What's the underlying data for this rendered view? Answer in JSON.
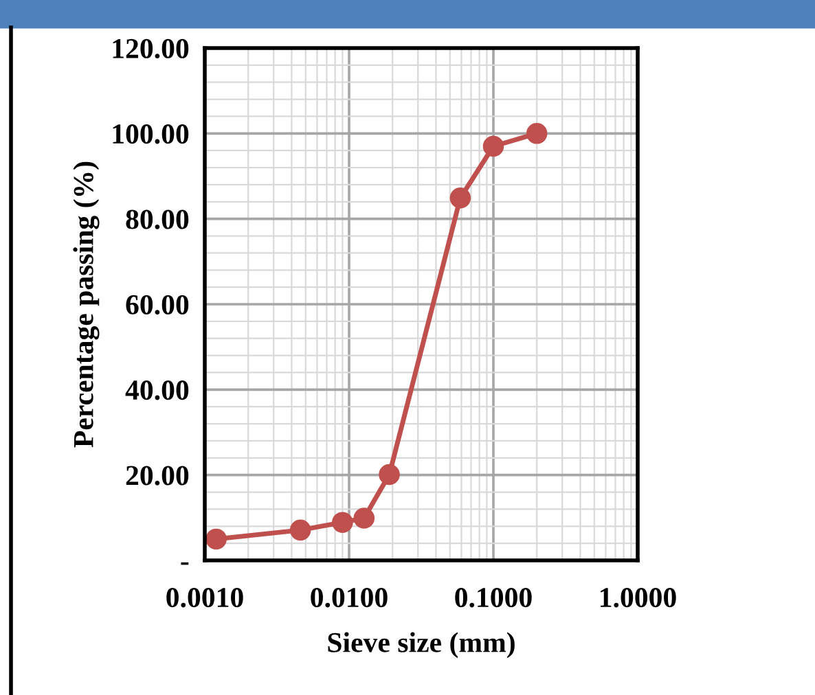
{
  "chart_data": {
    "type": "line",
    "xlabel": "Sieve size (mm)",
    "ylabel": "Percentage passing (%)",
    "x": [
      0.0012,
      0.0046,
      0.009,
      0.0127,
      0.019,
      0.059,
      0.1,
      0.2
    ],
    "series": [
      {
        "color": "#c0504d",
        "values": [
          5.0,
          7.1,
          8.9,
          9.9,
          20.1,
          84.9,
          97.0,
          100.0
        ]
      }
    ],
    "log": "x",
    "xlim": [
      0.001,
      1
    ],
    "xticks": [
      {
        "value": 0.001,
        "label": "0.0010"
      },
      {
        "value": 0.01,
        "label": "0.0100"
      },
      {
        "value": 0.1,
        "label": "0.1000"
      },
      {
        "value": 1,
        "label": "1.0000"
      }
    ],
    "ylim": [
      0,
      120
    ],
    "yticks": [
      {
        "value": 0,
        "label": "-"
      },
      {
        "value": 20,
        "label": "20.00"
      },
      {
        "value": 40,
        "label": "40.00"
      },
      {
        "value": 60,
        "label": "60.00"
      },
      {
        "value": 80,
        "label": "80.00"
      },
      {
        "value": 100,
        "label": "100.00"
      },
      {
        "value": 120,
        "label": "120.00"
      }
    ],
    "grid": true,
    "marker": "circle",
    "line_style": "solid"
  }
}
